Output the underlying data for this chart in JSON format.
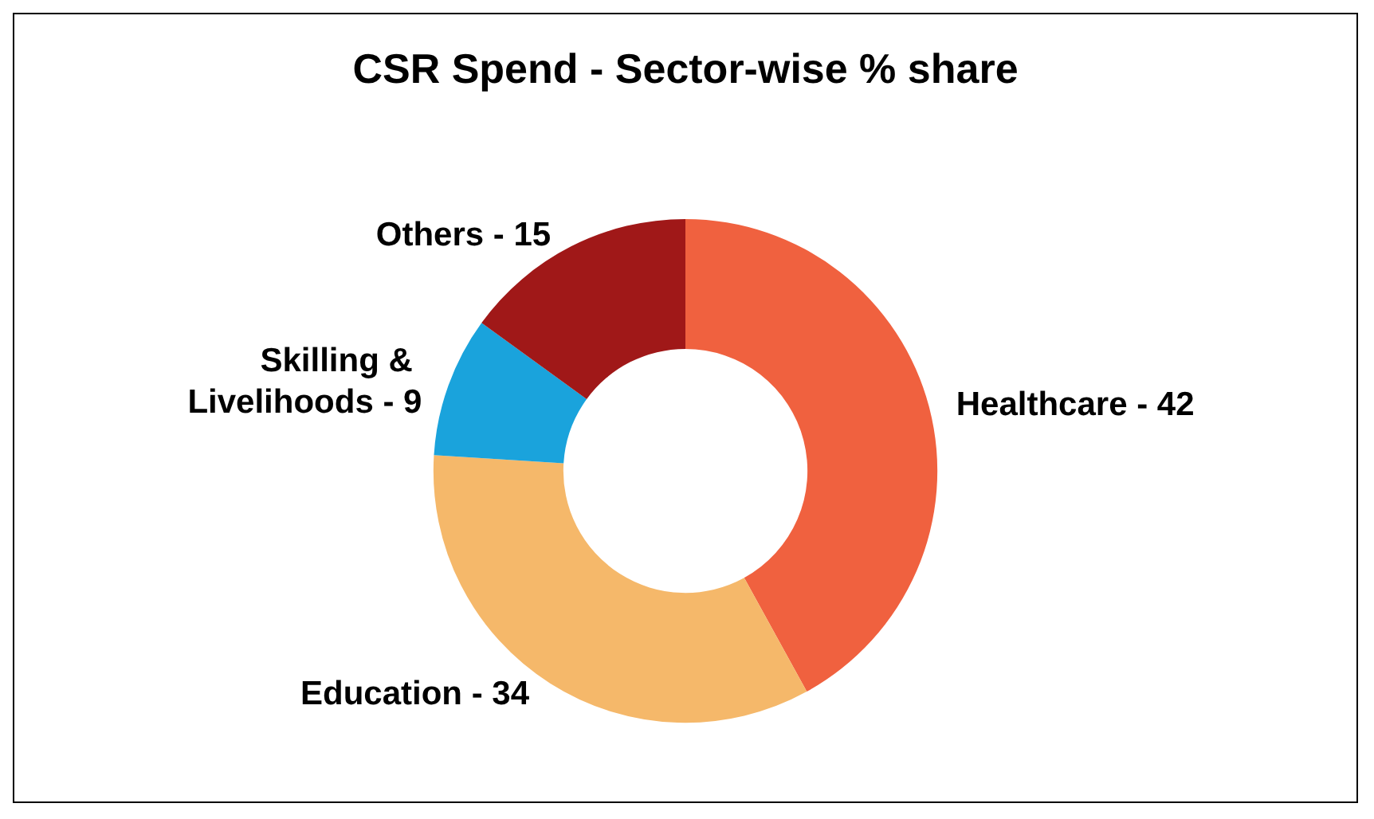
{
  "chart_data": {
    "type": "donut",
    "title": "CSR Spend - Sector-wise % share",
    "categories": [
      "Healthcare - 42",
      "Education - 34",
      "Skilling & Livelihoods - 9",
      "Others - 15"
    ],
    "values": [
      42,
      34,
      9,
      15
    ],
    "colors": [
      "#f0613f",
      "#f5b86a",
      "#1aa3dc",
      "#a01818"
    ],
    "legend": false
  }
}
